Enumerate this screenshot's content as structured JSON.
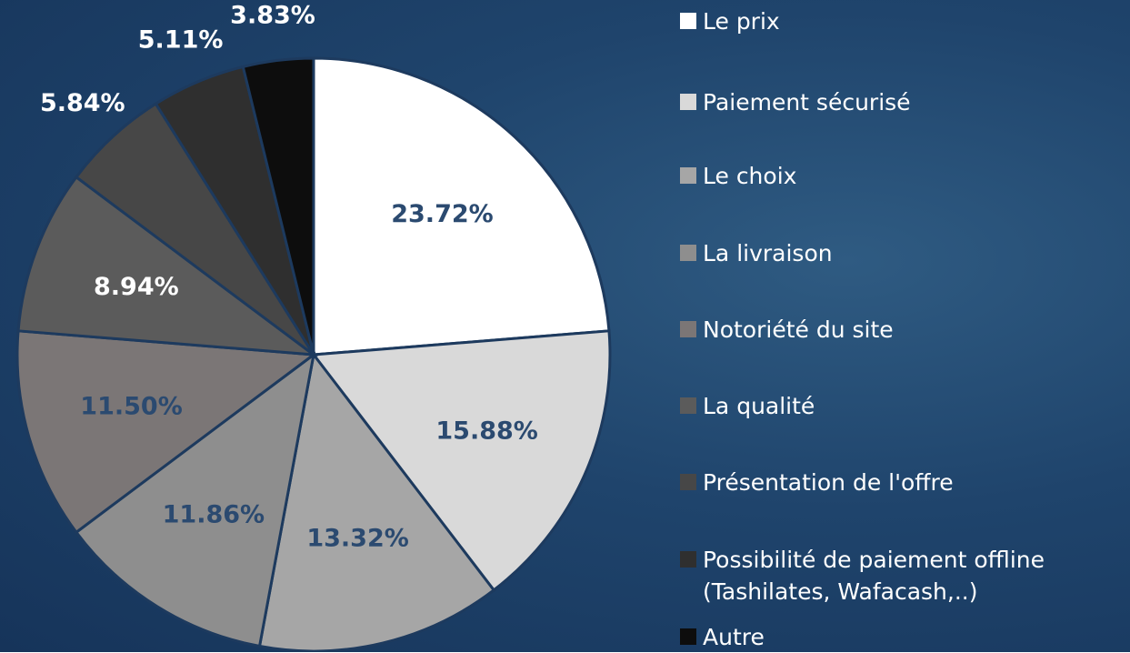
{
  "chart_data": {
    "type": "pie",
    "categories": [
      "Le prix",
      "Paiement sécurisé",
      "Le choix",
      "La livraison",
      "Notoriété du site",
      "La qualité",
      "Présentation de l'offre",
      "Possibilité de paiement offline (Tashilates, Wafacash,..)",
      "Autre"
    ],
    "values": [
      23.72,
      15.88,
      13.32,
      11.86,
      11.5,
      8.94,
      5.84,
      5.11,
      3.83
    ],
    "value_labels": [
      "23.72%",
      "15.88%",
      "13.32%",
      "11.86%",
      "11.50%",
      "8.94%",
      "5.84%",
      "5.11%",
      "3.83%"
    ],
    "colors": [
      "#ffffff",
      "#d9d9d9",
      "#a6a6a6",
      "#8e8e8e",
      "#7b7676",
      "#5b5b5b",
      "#474747",
      "#2f2f2f",
      "#0d0d0d"
    ],
    "legend": "right"
  }
}
